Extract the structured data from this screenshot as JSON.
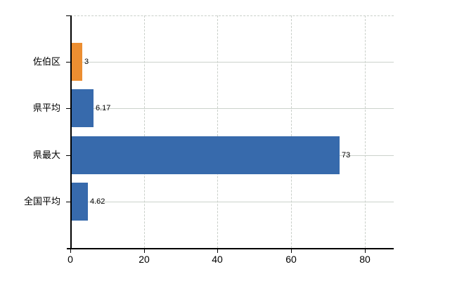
{
  "chart_data": {
    "type": "bar",
    "orientation": "horizontal",
    "title": "",
    "categories": [
      "佐伯区",
      "県平均",
      "県最大",
      "全国平均"
    ],
    "values": [
      3,
      6.17,
      73,
      4.62
    ],
    "value_labels": [
      "3",
      "6.17",
      "73",
      "4.62"
    ],
    "series": [
      {
        "name": "value",
        "values": [
          3,
          6.17,
          73,
          4.62
        ]
      }
    ],
    "bar_colors": [
      "#ec8e31",
      "#376aac",
      "#376aac",
      "#376aac"
    ],
    "x_ticks": [
      0,
      20,
      40,
      60,
      80
    ],
    "x_tick_labels": [
      "0",
      "20",
      "40",
      "60",
      "80"
    ],
    "xlim": [
      0,
      87.9
    ],
    "xlabel": "",
    "ylabel": "",
    "grid": true,
    "legend": false,
    "colors": {
      "highlight_bar": "#ec8e31",
      "default_bar": "#376aac",
      "gridline": "#ccd2cc",
      "axis": "#000000",
      "background": "#ffffff",
      "text": "#000000"
    }
  }
}
